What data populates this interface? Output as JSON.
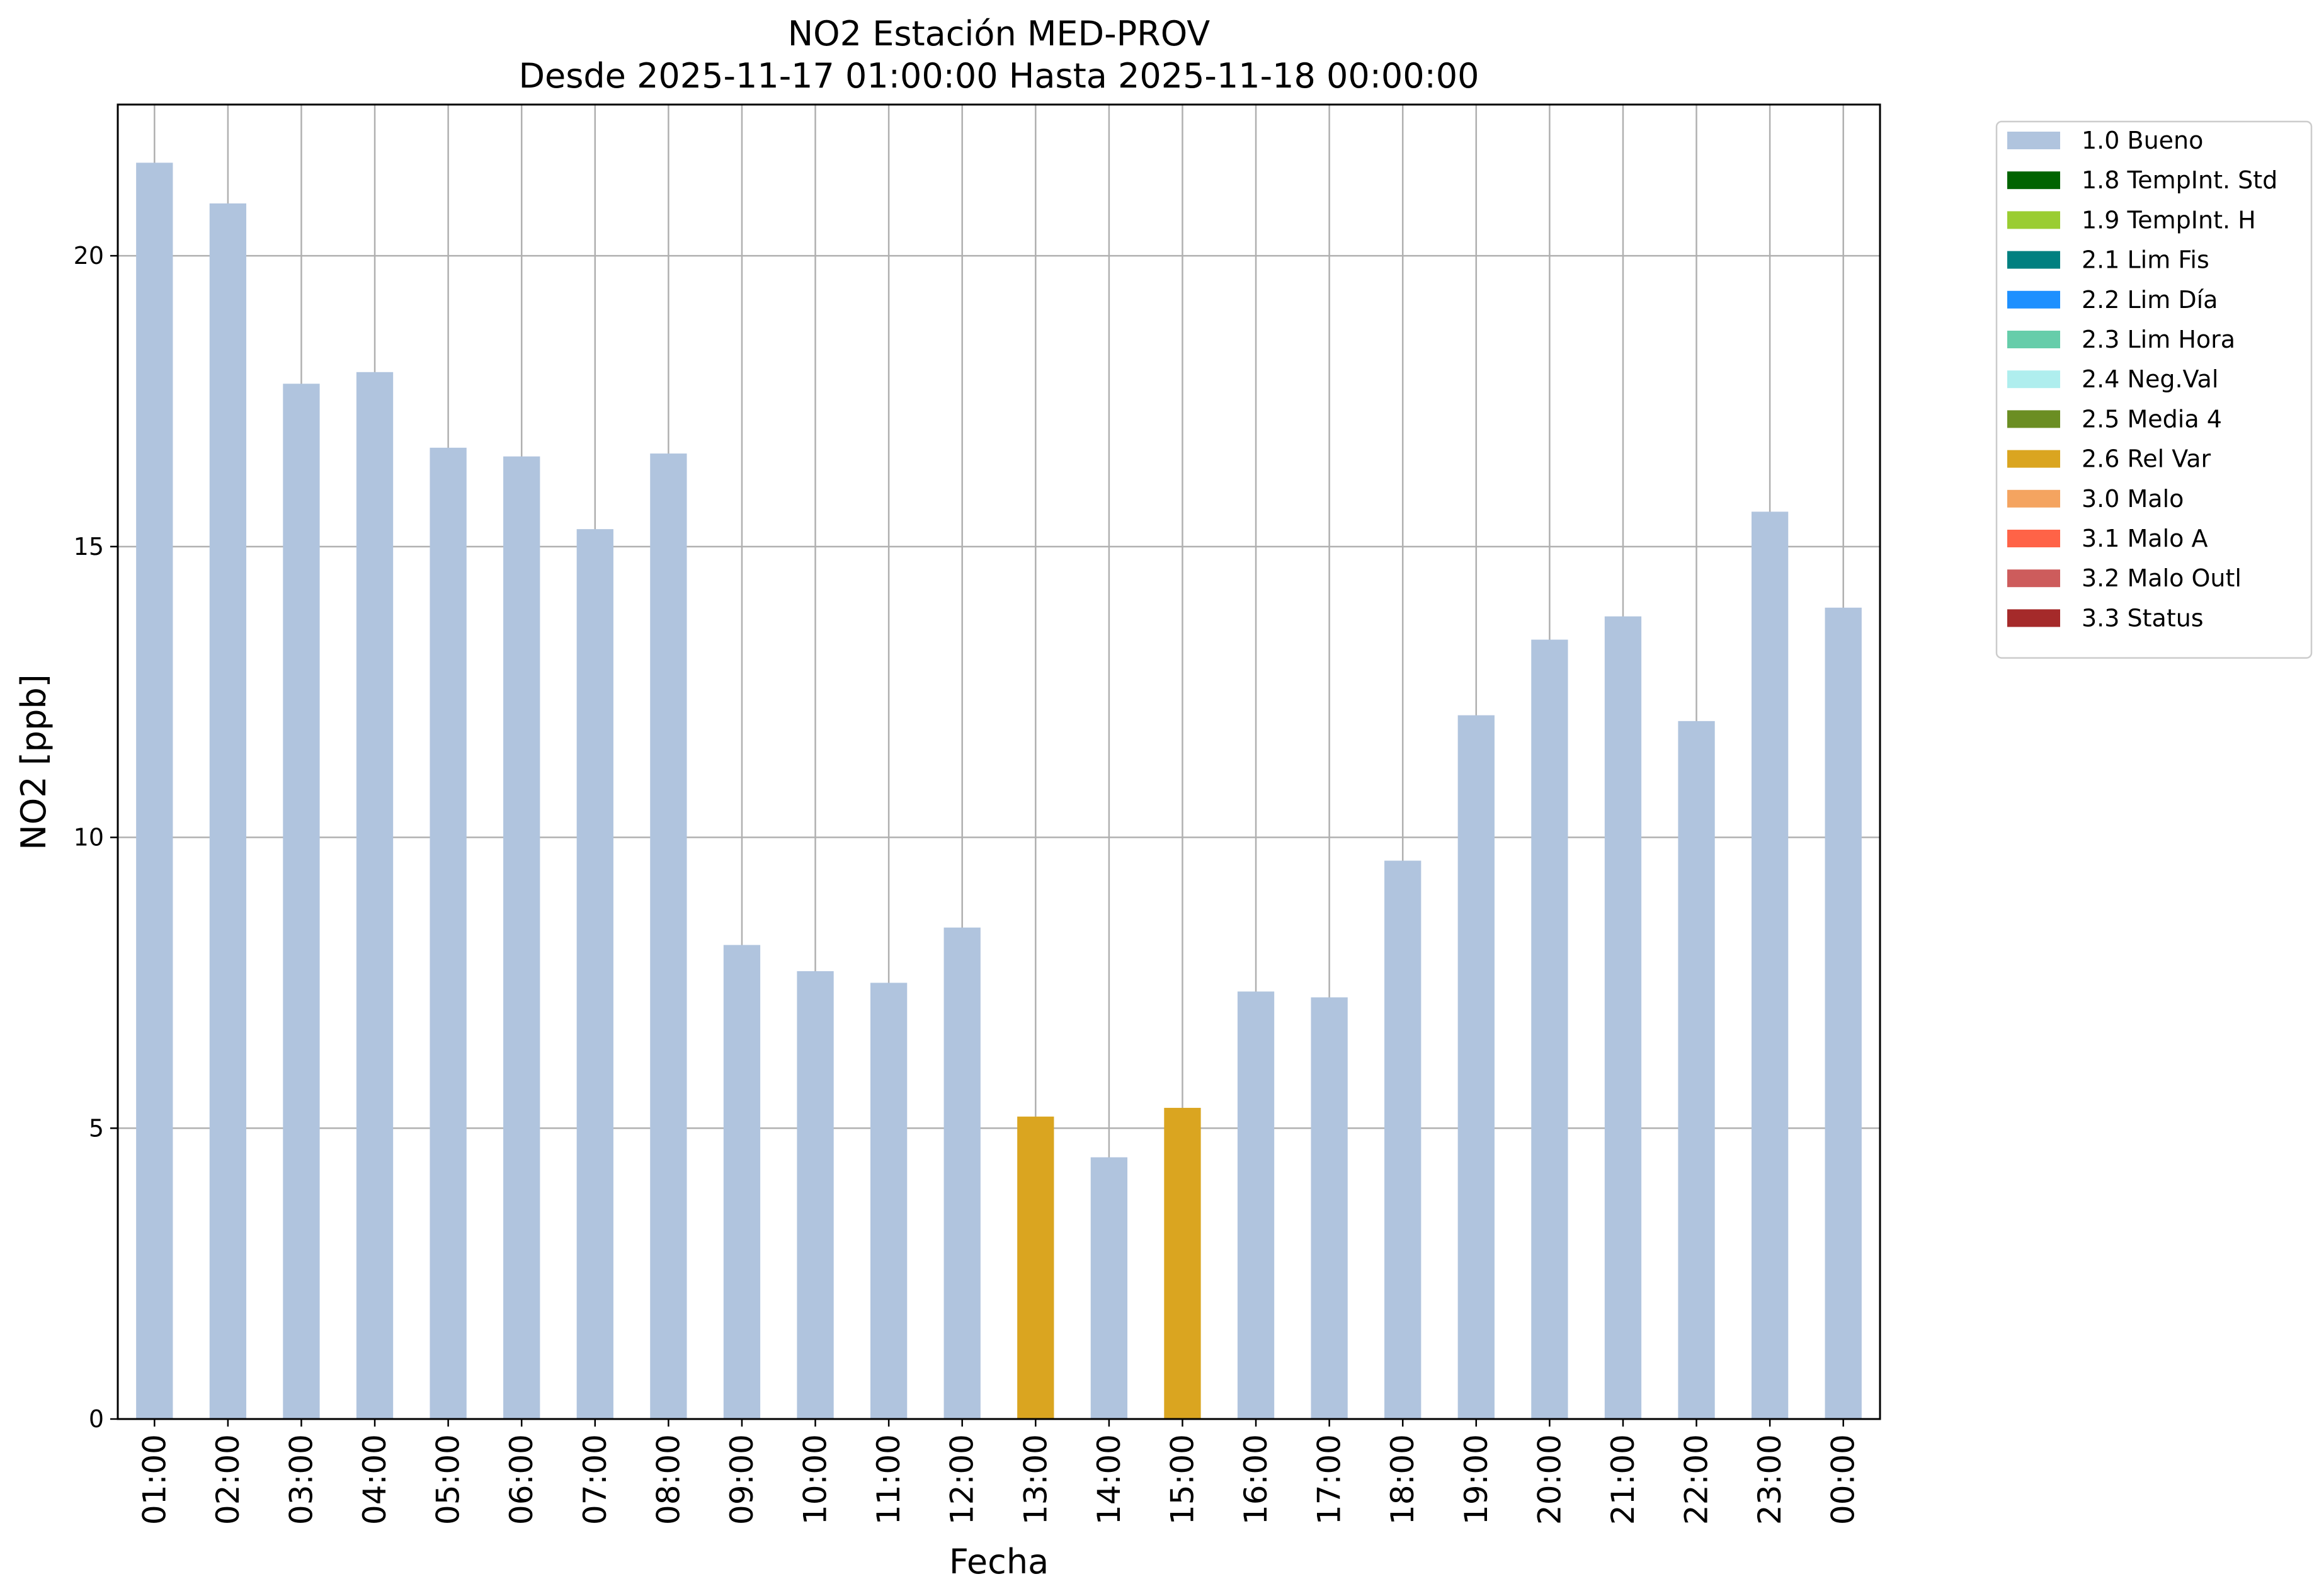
{
  "chart_data": {
    "type": "bar",
    "title": "NO2 Estación MED-PROV",
    "subtitle": "Desde 2025-11-17 01:00:00 Hasta 2025-11-18 00:00:00",
    "xlabel": "Fecha",
    "ylabel": "NO2 [ppb]",
    "ylim": [
      0,
      22.6
    ],
    "yticks": [
      0,
      5,
      10,
      15,
      20
    ],
    "grid": true,
    "legend_position": "outside-top-right",
    "categories": [
      "01:00",
      "02:00",
      "03:00",
      "04:00",
      "05:00",
      "06:00",
      "07:00",
      "08:00",
      "09:00",
      "10:00",
      "11:00",
      "12:00",
      "13:00",
      "14:00",
      "15:00",
      "16:00",
      "17:00",
      "18:00",
      "19:00",
      "20:00",
      "21:00",
      "22:00",
      "23:00",
      "00:00"
    ],
    "values": [
      21.6,
      20.9,
      17.8,
      18.0,
      16.7,
      16.55,
      15.3,
      16.6,
      8.15,
      7.7,
      7.5,
      8.45,
      5.2,
      4.5,
      5.35,
      7.35,
      7.25,
      9.6,
      12.1,
      13.4,
      13.8,
      12.0,
      15.6,
      13.95
    ],
    "flags": [
      "1.0",
      "1.0",
      "1.0",
      "1.0",
      "1.0",
      "1.0",
      "1.0",
      "1.0",
      "1.0",
      "1.0",
      "1.0",
      "1.0",
      "2.6",
      "1.0",
      "2.6",
      "1.0",
      "1.0",
      "1.0",
      "1.0",
      "1.0",
      "1.0",
      "1.0",
      "1.0",
      "1.0"
    ],
    "legend": [
      {
        "code": "1.0",
        "label": "1.0 Bueno",
        "color": "#b0c4de"
      },
      {
        "code": "1.8",
        "label": "1.8 TempInt. Std",
        "color": "#006400"
      },
      {
        "code": "1.9",
        "label": "1.9 TempInt. H",
        "color": "#9acd32"
      },
      {
        "code": "2.1",
        "label": "2.1 Lim Fis",
        "color": "#008080"
      },
      {
        "code": "2.2",
        "label": "2.2 Lim Día",
        "color": "#1e90ff"
      },
      {
        "code": "2.3",
        "label": "2.3 Lim Hora",
        "color": "#66cdaa"
      },
      {
        "code": "2.4",
        "label": "2.4 Neg.Val",
        "color": "#afeeee"
      },
      {
        "code": "2.5",
        "label": "2.5 Media 4",
        "color": "#6b8e23"
      },
      {
        "code": "2.6",
        "label": "2.6 Rel Var",
        "color": "#daa520"
      },
      {
        "code": "3.0",
        "label": "3.0 Malo",
        "color": "#f4a460"
      },
      {
        "code": "3.1",
        "label": "3.1 Malo A",
        "color": "#ff6347"
      },
      {
        "code": "3.2",
        "label": "3.2 Malo Outl",
        "color": "#cd5c5c"
      },
      {
        "code": "3.3",
        "label": "3.3 Status",
        "color": "#a52a2a"
      }
    ]
  }
}
